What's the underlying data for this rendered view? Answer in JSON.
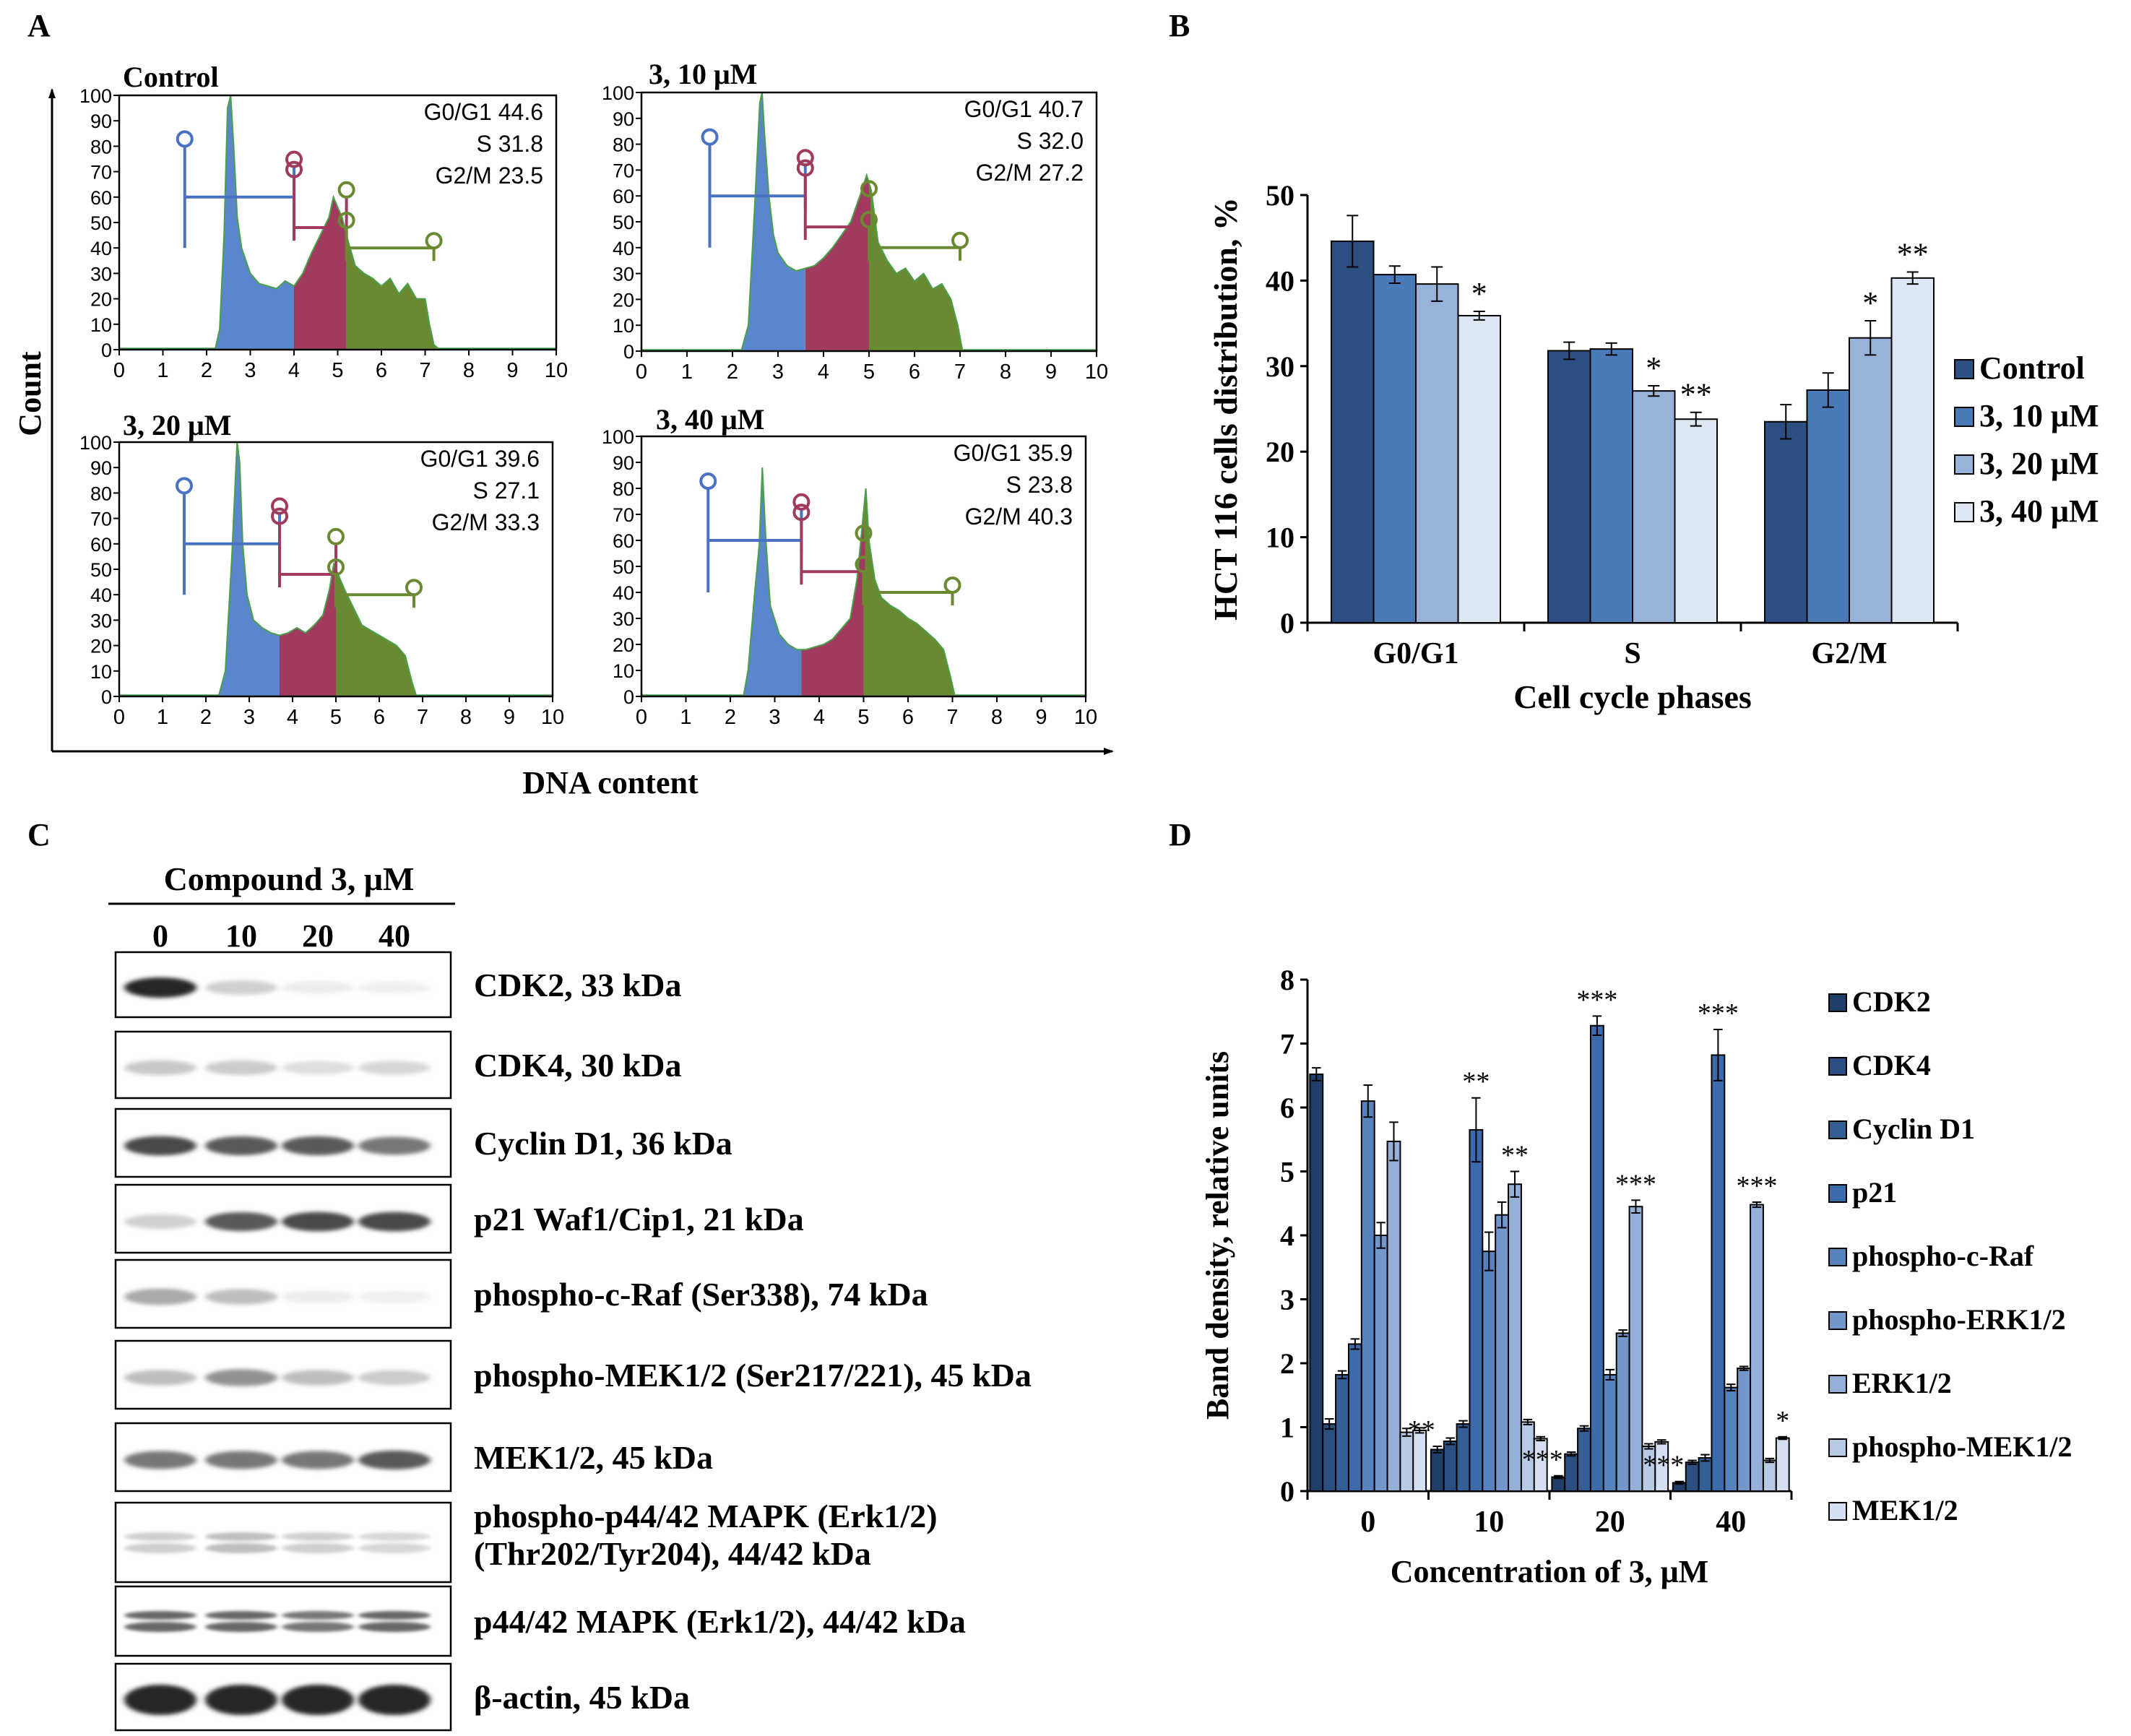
{
  "panels": {
    "A": "A",
    "B": "B",
    "C": "C",
    "D": "D"
  },
  "panelA": {
    "ylabel": "Count",
    "xlabel": "DNA content",
    "yticks": [
      "0",
      "10",
      "20",
      "30",
      "40",
      "50",
      "60",
      "70",
      "80",
      "90",
      "100"
    ],
    "xticks": [
      "0",
      "1",
      "2",
      "3",
      "4",
      "5",
      "6",
      "7",
      "8",
      "9",
      "10"
    ],
    "histograms": [
      {
        "title": "Control",
        "stats": [
          "G0/G1 44.6",
          "S 31.8",
          "G2/M 23.5"
        ],
        "gates": {
          "g1": [
            1.5,
            4.0
          ],
          "s": [
            4.0,
            5.2
          ],
          "g2": [
            5.2,
            7.2
          ]
        },
        "profile": [
          [
            0,
            0.5
          ],
          [
            2.2,
            0.5
          ],
          [
            2.3,
            8
          ],
          [
            2.4,
            45
          ],
          [
            2.48,
            95
          ],
          [
            2.55,
            100
          ],
          [
            2.62,
            80
          ],
          [
            2.7,
            52
          ],
          [
            2.8,
            40
          ],
          [
            2.9,
            35
          ],
          [
            3.0,
            30
          ],
          [
            3.2,
            26
          ],
          [
            3.4,
            25
          ],
          [
            3.6,
            24
          ],
          [
            3.8,
            27
          ],
          [
            4.0,
            25
          ],
          [
            4.2,
            30
          ],
          [
            4.4,
            38
          ],
          [
            4.6,
            45
          ],
          [
            4.8,
            52
          ],
          [
            4.9,
            60
          ],
          [
            5.0,
            56
          ],
          [
            5.1,
            52
          ],
          [
            5.2,
            45
          ],
          [
            5.4,
            33
          ],
          [
            5.6,
            30
          ],
          [
            5.8,
            28
          ],
          [
            6.0,
            25
          ],
          [
            6.2,
            28
          ],
          [
            6.4,
            22
          ],
          [
            6.6,
            26
          ],
          [
            6.8,
            20
          ],
          [
            7.0,
            20
          ],
          [
            7.1,
            10
          ],
          [
            7.2,
            2
          ],
          [
            7.3,
            0.5
          ],
          [
            10,
            0.5
          ]
        ]
      },
      {
        "title": "3, 10 μM",
        "stats": [
          "G0/G1 40.7",
          "S 32.0",
          "G2/M 27.2"
        ],
        "gates": {
          "g1": [
            1.5,
            3.6
          ],
          "s": [
            3.6,
            5.0
          ],
          "g2": [
            5.0,
            7.0
          ]
        },
        "profile": [
          [
            0,
            0.5
          ],
          [
            2.2,
            0.5
          ],
          [
            2.35,
            10
          ],
          [
            2.5,
            60
          ],
          [
            2.6,
            96
          ],
          [
            2.65,
            100
          ],
          [
            2.7,
            85
          ],
          [
            2.8,
            60
          ],
          [
            2.9,
            45
          ],
          [
            3.0,
            38
          ],
          [
            3.2,
            33
          ],
          [
            3.4,
            31
          ],
          [
            3.6,
            32
          ],
          [
            3.8,
            33
          ],
          [
            4.0,
            36
          ],
          [
            4.2,
            40
          ],
          [
            4.4,
            45
          ],
          [
            4.6,
            50
          ],
          [
            4.8,
            60
          ],
          [
            4.95,
            68
          ],
          [
            5.05,
            62
          ],
          [
            5.2,
            42
          ],
          [
            5.4,
            35
          ],
          [
            5.6,
            30
          ],
          [
            5.8,
            32
          ],
          [
            6.0,
            27
          ],
          [
            6.2,
            30
          ],
          [
            6.4,
            24
          ],
          [
            6.6,
            26
          ],
          [
            6.8,
            20
          ],
          [
            6.95,
            10
          ],
          [
            7.05,
            0.5
          ],
          [
            10,
            0.5
          ]
        ]
      },
      {
        "title": "3, 20 μM",
        "stats": [
          "G0/G1 39.6",
          "S 27.1",
          "G2/M 33.3"
        ],
        "gates": {
          "g1": [
            1.5,
            3.7
          ],
          "s": [
            3.7,
            5.0
          ],
          "g2": [
            5.0,
            6.8
          ]
        },
        "profile": [
          [
            0,
            0.5
          ],
          [
            2.3,
            0.5
          ],
          [
            2.45,
            10
          ],
          [
            2.6,
            55
          ],
          [
            2.72,
            100
          ],
          [
            2.78,
            92
          ],
          [
            2.85,
            60
          ],
          [
            2.95,
            40
          ],
          [
            3.1,
            30
          ],
          [
            3.3,
            27
          ],
          [
            3.5,
            25
          ],
          [
            3.7,
            24
          ],
          [
            3.9,
            25
          ],
          [
            4.1,
            27
          ],
          [
            4.3,
            25
          ],
          [
            4.5,
            28
          ],
          [
            4.7,
            32
          ],
          [
            4.85,
            42
          ],
          [
            4.95,
            52
          ],
          [
            5.05,
            48
          ],
          [
            5.2,
            42
          ],
          [
            5.4,
            35
          ],
          [
            5.6,
            28
          ],
          [
            5.8,
            26
          ],
          [
            6.0,
            24
          ],
          [
            6.2,
            22
          ],
          [
            6.4,
            20
          ],
          [
            6.6,
            16
          ],
          [
            6.75,
            6
          ],
          [
            6.85,
            0.5
          ],
          [
            10,
            0.5
          ]
        ]
      },
      {
        "title": "3, 40 μM",
        "stats": [
          "G0/G1 35.9",
          "S 23.8",
          "G2/M 40.3"
        ],
        "gates": {
          "g1": [
            1.5,
            3.6
          ],
          "s": [
            3.6,
            5.0
          ],
          "g2": [
            5.0,
            7.0
          ]
        },
        "profile": [
          [
            0,
            0.5
          ],
          [
            2.3,
            0.5
          ],
          [
            2.4,
            10
          ],
          [
            2.55,
            40
          ],
          [
            2.65,
            58
          ],
          [
            2.72,
            88
          ],
          [
            2.8,
            60
          ],
          [
            2.9,
            35
          ],
          [
            3.1,
            24
          ],
          [
            3.3,
            20
          ],
          [
            3.5,
            18
          ],
          [
            3.7,
            18
          ],
          [
            3.9,
            19
          ],
          [
            4.1,
            20
          ],
          [
            4.3,
            22
          ],
          [
            4.5,
            26
          ],
          [
            4.7,
            30
          ],
          [
            4.85,
            45
          ],
          [
            4.95,
            62
          ],
          [
            5.05,
            80
          ],
          [
            5.12,
            60
          ],
          [
            5.25,
            45
          ],
          [
            5.4,
            38
          ],
          [
            5.6,
            35
          ],
          [
            5.8,
            33
          ],
          [
            6.0,
            30
          ],
          [
            6.2,
            28
          ],
          [
            6.4,
            25
          ],
          [
            6.6,
            22
          ],
          [
            6.8,
            18
          ],
          [
            6.95,
            8
          ],
          [
            7.05,
            0.5
          ],
          [
            10,
            0.5
          ]
        ]
      }
    ]
  },
  "chart_data": [
    {
      "type": "bar",
      "title": "",
      "xlabel": "Cell cycle phases",
      "ylabel": "HCT 116 cells distribution, %",
      "ylim": [
        0,
        50
      ],
      "yticks": [
        "0",
        "10",
        "20",
        "30",
        "40",
        "50"
      ],
      "categories": [
        "G0/G1",
        "S",
        "G2/M"
      ],
      "colors": [
        "#2a4f80",
        "#4a7ab8",
        "#98b3d9",
        "#dde7f4"
      ],
      "series": [
        {
          "name": "Control",
          "values": [
            44.6,
            31.8,
            23.5
          ],
          "errors": [
            3.0,
            1.0,
            2.0
          ],
          "sig": [
            "",
            "",
            ""
          ]
        },
        {
          "name": "3, 10 μM",
          "values": [
            40.7,
            32.0,
            27.2
          ],
          "errors": [
            1.0,
            0.7,
            2.0
          ],
          "sig": [
            "",
            "",
            ""
          ]
        },
        {
          "name": "3, 20 μM",
          "values": [
            39.6,
            27.1,
            33.3
          ],
          "errors": [
            2.0,
            0.6,
            2.0
          ],
          "sig": [
            "",
            "*",
            "*"
          ]
        },
        {
          "name": "3, 40 μM",
          "values": [
            35.9,
            23.8,
            40.3
          ],
          "errors": [
            0.5,
            0.8,
            0.7
          ],
          "sig": [
            "*",
            "**",
            "**"
          ]
        }
      ]
    },
    {
      "type": "bar",
      "title": "",
      "xlabel": "Concentration of 3, μM",
      "ylabel": "Band density, relative units",
      "ylim": [
        0,
        8
      ],
      "yticks": [
        "0",
        "1",
        "2",
        "3",
        "4",
        "5",
        "6",
        "7",
        "8"
      ],
      "categories": [
        "0",
        "10",
        "20",
        "40"
      ],
      "colors": [
        "#1f3f68",
        "#2a4f80",
        "#335e96",
        "#3d6aaa",
        "#5682be",
        "#7397cb",
        "#95b0d8",
        "#b7c9e5",
        "#d4e0f1"
      ],
      "series": [
        {
          "name": "CDK2",
          "values": [
            6.52,
            0.65,
            0.22,
            0.13
          ],
          "errors": [
            0.1,
            0.05,
            0.02,
            0.02
          ],
          "sig": [
            "",
            "**",
            "***",
            "***"
          ]
        },
        {
          "name": "CDK4",
          "values": [
            1.05,
            0.78,
            0.58,
            0.45
          ],
          "errors": [
            0.08,
            0.05,
            0.03,
            0.03
          ],
          "sig": [
            "",
            "",
            "",
            ""
          ]
        },
        {
          "name": "Cyclin D1",
          "values": [
            1.82,
            1.05,
            0.98,
            0.52
          ],
          "errors": [
            0.06,
            0.05,
            0.04,
            0.05
          ],
          "sig": [
            "",
            "",
            "",
            ""
          ]
        },
        {
          "name": "p21",
          "values": [
            2.3,
            5.65,
            7.28,
            6.82
          ],
          "errors": [
            0.08,
            0.5,
            0.15,
            0.4
          ],
          "sig": [
            "",
            "**",
            "***",
            "***"
          ]
        },
        {
          "name": "phospho-c-Raf",
          "values": [
            6.1,
            3.75,
            1.82,
            1.62
          ],
          "errors": [
            0.25,
            0.3,
            0.08,
            0.05
          ],
          "sig": [
            "",
            "",
            "",
            ""
          ]
        },
        {
          "name": "phospho-ERK1/2",
          "values": [
            4.0,
            4.32,
            2.47,
            1.92
          ],
          "errors": [
            0.2,
            0.2,
            0.05,
            0.03
          ],
          "sig": [
            "",
            "",
            "",
            ""
          ]
        },
        {
          "name": "ERK1/2",
          "values": [
            5.47,
            4.8,
            4.45,
            4.48
          ],
          "errors": [
            0.3,
            0.2,
            0.1,
            0.04
          ],
          "sig": [
            "",
            "**",
            "***",
            "***"
          ]
        },
        {
          "name": "phospho-MEK1/2",
          "values": [
            0.92,
            1.08,
            0.7,
            0.48
          ],
          "errors": [
            0.06,
            0.04,
            0.04,
            0.03
          ],
          "sig": [
            "",
            "",
            "",
            ""
          ]
        },
        {
          "name": "MEK1/2",
          "values": [
            0.95,
            0.82,
            0.77,
            0.83
          ],
          "errors": [
            0.04,
            0.03,
            0.03,
            0.02
          ],
          "sig": [
            "",
            "",
            "",
            "*"
          ]
        }
      ]
    }
  ],
  "panelC": {
    "header": "Compound 3, μM",
    "lanes": [
      "0",
      "10",
      "20",
      "40"
    ],
    "blots": [
      {
        "label": "CDK2, 33 kDa",
        "intensity": [
          1.0,
          0.35,
          0.15,
          0.12
        ],
        "double": false
      },
      {
        "label": "CDK4, 30 kDa",
        "intensity": [
          0.4,
          0.38,
          0.25,
          0.3
        ],
        "double": false
      },
      {
        "label": "Cyclin D1, 36 kDa",
        "intensity": [
          0.9,
          0.85,
          0.85,
          0.75
        ],
        "double": false
      },
      {
        "label": "p21 Waf1/Cip1, 21 kDa",
        "intensity": [
          0.35,
          0.85,
          0.9,
          0.9
        ],
        "double": false
      },
      {
        "label": "phospho-c-Raf (Ser338), 74 kDa",
        "intensity": [
          0.55,
          0.45,
          0.15,
          0.12
        ],
        "double": false
      },
      {
        "label": "phospho-MEK1/2 (Ser217/221), 45 kDa",
        "intensity": [
          0.45,
          0.65,
          0.45,
          0.38
        ],
        "double": false
      },
      {
        "label": "MEK1/2, 45 kDa",
        "intensity": [
          0.75,
          0.75,
          0.75,
          0.85
        ],
        "double": false
      },
      {
        "label1": "phospho-p44/42 MAPK (Erk1/2)",
        "label2": "(Thr202/Tyr204), 44/42 kDa",
        "intensity": [
          0.35,
          0.45,
          0.35,
          0.3
        ],
        "double": true,
        "twoLine": true
      },
      {
        "label": "p44/42 MAPK (Erk1/2), 44/42 kDa",
        "intensity": [
          0.8,
          0.8,
          0.75,
          0.8
        ],
        "double": true
      },
      {
        "label": "β-actin, 45 kDa",
        "intensity": [
          1.0,
          1.0,
          1.0,
          1.0
        ],
        "double": false,
        "thick": true
      }
    ]
  }
}
